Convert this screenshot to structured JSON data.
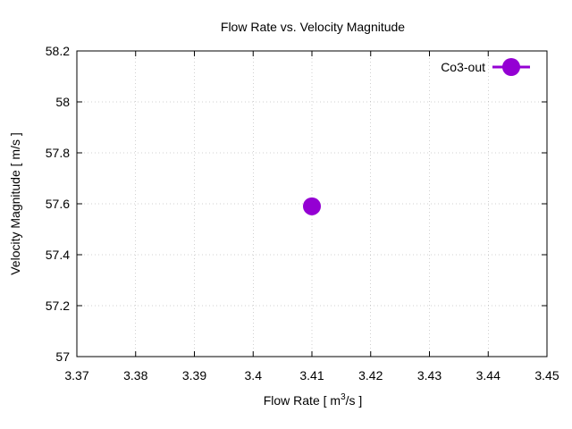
{
  "chart_data": {
    "type": "scatter",
    "title": "Flow Rate vs. Velocity Magnitude",
    "xlabel_main": "Flow Rate [ m",
    "xlabel_sup": "3",
    "xlabel_tail": "/s ]",
    "ylabel": "Velocity Magnitude [ m/s ]",
    "xlim": [
      3.37,
      3.45
    ],
    "ylim": [
      57,
      58.2
    ],
    "xticks": [
      3.37,
      3.38,
      3.39,
      3.4,
      3.41,
      3.42,
      3.43,
      3.44,
      3.45
    ],
    "xtick_labels": [
      "3.37",
      "3.38",
      "3.39",
      "3.4",
      "3.41",
      "3.42",
      "3.43",
      "3.44",
      "3.45"
    ],
    "yticks": [
      57,
      57.2,
      57.4,
      57.6,
      57.8,
      58,
      58.2
    ],
    "ytick_labels": [
      "57",
      "57.2",
      "57.4",
      "57.6",
      "57.8",
      "58",
      "58.2"
    ],
    "grid": true,
    "legend_position": "top-right",
    "series": [
      {
        "name": "Co3-out",
        "color": "#9400d3",
        "points": [
          {
            "x": 3.41,
            "y": 57.59
          }
        ]
      }
    ]
  }
}
